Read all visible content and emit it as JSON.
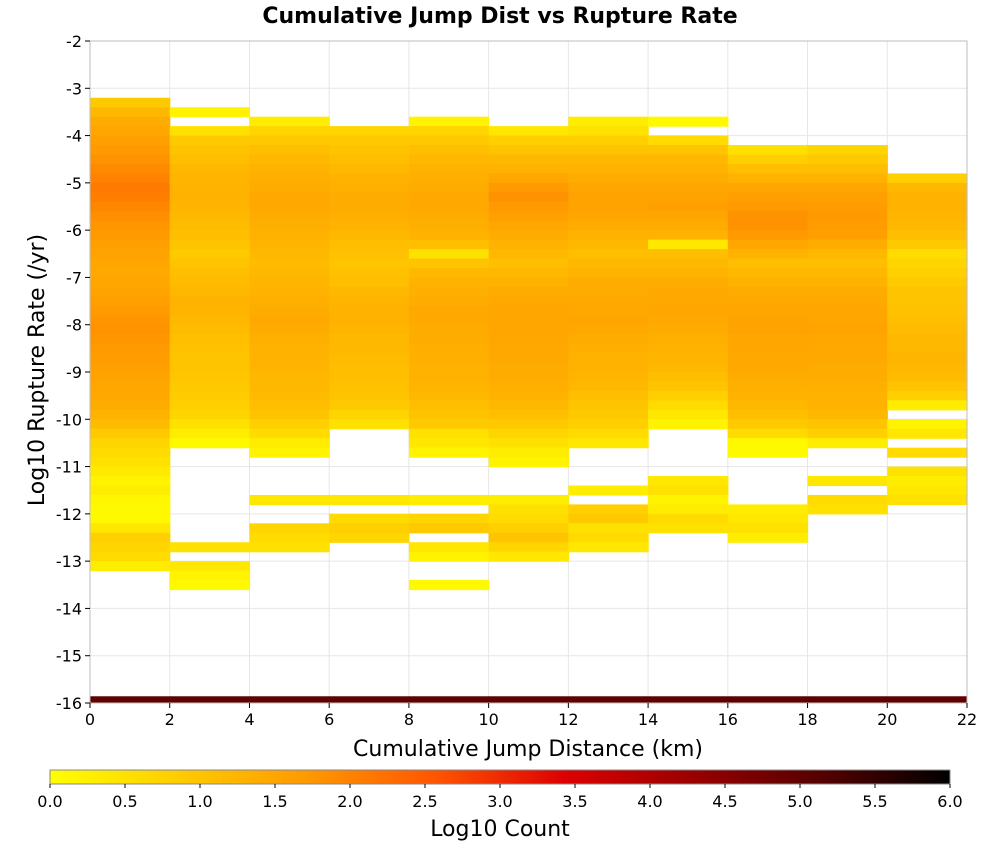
{
  "chart_data": {
    "type": "heatmap",
    "title": "Cumulative Jump Dist vs Rupture Rate",
    "xlabel": "Cumulative Jump Distance (km)",
    "ylabel": "Log10 Rupture Rate (/yr)",
    "xlim": [
      0,
      22
    ],
    "ylim": [
      -16,
      -2
    ],
    "x_ticks": [
      "0",
      "2",
      "4",
      "6",
      "8",
      "10",
      "12",
      "14",
      "16",
      "18",
      "20",
      "22"
    ],
    "y_ticks": [
      "-2",
      "-3",
      "-4",
      "-5",
      "-6",
      "-7",
      "-8",
      "-9",
      "-10",
      "-11",
      "-12",
      "-13",
      "-14",
      "-15",
      "-16"
    ],
    "x_bins": [
      0,
      2,
      4,
      6,
      8,
      10,
      12,
      14,
      16,
      18,
      20
    ],
    "x_bin_width": 2,
    "y_bin_height": 0.2,
    "grid": true,
    "colorbar": {
      "label": "Log10 Count",
      "range": [
        0,
        6
      ],
      "ticks": [
        "0.0",
        "0.5",
        "1.0",
        "1.5",
        "2.0",
        "2.5",
        "3.0",
        "3.5",
        "4.0",
        "4.5",
        "5.0",
        "5.5",
        "6.0"
      ],
      "stops": [
        "#ffff00",
        "#ffcc00",
        "#ff9900",
        "#ff5500",
        "#dd0000",
        "#990000",
        "#550000",
        "#000000"
      ]
    },
    "columns": [
      {
        "x_start": 0,
        "y_top": -3.2,
        "values": [
          0.9,
          1.2,
          1.4,
          1.5,
          1.6,
          1.7,
          1.8,
          1.9,
          2.0,
          2.1,
          2.05,
          1.95,
          1.85,
          1.75,
          1.7,
          1.6,
          1.55,
          1.5,
          1.45,
          1.5,
          1.55,
          1.6,
          1.7,
          1.75,
          1.8,
          1.75,
          1.7,
          1.65,
          1.6,
          1.55,
          1.5,
          1.45,
          1.4,
          1.3,
          1.15,
          0.9,
          0.7,
          0.6,
          0.5,
          0.35,
          0.2,
          0.3,
          0.15,
          0.1,
          0.1,
          0.4,
          0.8,
          0.7,
          0.6,
          0.3
        ]
      },
      {
        "x_start": 2,
        "y_top": -3.4,
        "values": [
          0.2,
          null,
          0.5,
          0.9,
          1.0,
          1.1,
          1.2,
          1.25,
          1.3,
          1.3,
          1.25,
          1.2,
          1.15,
          1.1,
          1.0,
          0.9,
          1.0,
          1.1,
          1.15,
          1.2,
          1.3,
          1.25,
          1.2,
          1.15,
          1.1,
          1.05,
          1.0,
          1.0,
          0.95,
          0.9,
          0.85,
          0.8,
          0.7,
          0.5,
          0.3,
          0.1,
          null,
          null,
          null,
          null,
          null,
          null,
          null,
          null,
          null,
          null,
          0.5,
          null,
          0.4,
          0.2,
          0.1
        ]
      },
      {
        "x_start": 4,
        "y_top": -3.6,
        "values": [
          0.3,
          0.7,
          0.9,
          1.1,
          1.2,
          1.3,
          1.35,
          1.4,
          1.45,
          1.45,
          1.4,
          1.35,
          1.3,
          1.25,
          1.2,
          1.15,
          1.2,
          1.25,
          1.3,
          1.35,
          1.4,
          1.45,
          1.4,
          1.35,
          1.3,
          1.3,
          1.25,
          1.2,
          1.2,
          1.15,
          1.1,
          1.0,
          0.8,
          0.6,
          0.3,
          0.2,
          null,
          null,
          null,
          null,
          0.4,
          null,
          null,
          0.7,
          0.6,
          0.5
        ]
      },
      {
        "x_start": 6,
        "y_top": -3.8,
        "values": [
          0.7,
          0.9,
          1.0,
          1.1,
          1.2,
          1.3,
          1.35,
          1.4,
          1.4,
          1.35,
          1.3,
          1.2,
          1.1,
          1.05,
          1.0,
          1.05,
          1.1,
          1.2,
          1.25,
          1.3,
          1.3,
          1.25,
          1.2,
          1.2,
          1.15,
          1.1,
          1.1,
          1.05,
          1.0,
          0.9,
          0.7,
          0.5,
          null,
          null,
          null,
          null,
          null,
          null,
          null,
          0.4,
          null,
          0.6,
          0.8,
          0.7
        ]
      },
      {
        "x_start": 8,
        "y_top": -3.6,
        "values": [
          0.2,
          0.7,
          0.9,
          1.1,
          1.2,
          1.3,
          1.35,
          1.4,
          1.45,
          1.45,
          1.4,
          1.35,
          1.3,
          1.1,
          0.5,
          1.0,
          1.2,
          1.3,
          1.35,
          1.4,
          1.45,
          1.45,
          1.4,
          1.4,
          1.35,
          1.35,
          1.3,
          1.3,
          1.25,
          1.2,
          1.1,
          1.0,
          0.9,
          0.5,
          0.4,
          0.2,
          null,
          null,
          null,
          null,
          0.3,
          null,
          0.7,
          0.9,
          null,
          0.4,
          0.2,
          null,
          null,
          0.1
        ]
      },
      {
        "x_start": 10,
        "y_top": -3.8,
        "values": [
          0.4,
          0.8,
          1.0,
          1.2,
          1.3,
          1.5,
          1.7,
          1.8,
          1.7,
          1.6,
          1.5,
          1.4,
          1.3,
          1.2,
          1.1,
          1.2,
          1.3,
          1.4,
          1.45,
          1.5,
          1.5,
          1.5,
          1.5,
          1.45,
          1.45,
          1.4,
          1.4,
          1.35,
          1.3,
          1.2,
          1.1,
          0.9,
          0.7,
          0.5,
          0.3,
          0.2,
          null,
          null,
          null,
          0.3,
          0.5,
          0.6,
          0.8,
          1.0,
          0.7,
          0.4
        ]
      },
      {
        "x_start": 12,
        "y_top": -3.6,
        "values": [
          0.3,
          0.5,
          0.8,
          1.0,
          1.2,
          1.3,
          1.4,
          1.5,
          1.55,
          1.55,
          1.5,
          1.4,
          1.3,
          1.2,
          1.1,
          1.2,
          1.3,
          1.4,
          1.4,
          1.45,
          1.45,
          1.5,
          1.45,
          1.4,
          1.35,
          1.3,
          1.3,
          1.25,
          1.2,
          1.1,
          1.0,
          0.9,
          0.8,
          0.6,
          0.4,
          null,
          null,
          null,
          null,
          0.3,
          null,
          0.8,
          0.9,
          0.5,
          0.6,
          0.4
        ]
      },
      {
        "x_start": 14,
        "y_top": -3.6,
        "values": [
          0.1,
          null,
          0.6,
          1.0,
          1.2,
          1.3,
          1.4,
          1.5,
          1.55,
          1.6,
          1.5,
          1.4,
          1.3,
          0.4,
          1.1,
          1.2,
          1.3,
          1.4,
          1.45,
          1.45,
          1.5,
          1.45,
          1.4,
          1.35,
          1.3,
          1.25,
          1.2,
          1.1,
          1.0,
          0.8,
          0.6,
          0.4,
          0.2,
          null,
          null,
          null,
          null,
          null,
          0.4,
          0.5,
          0.2,
          0.3,
          0.6,
          0.5
        ]
      },
      {
        "x_start": 16,
        "y_top": -4.2,
        "values": [
          0.5,
          0.8,
          1.1,
          1.3,
          1.5,
          1.6,
          1.7,
          1.8,
          1.8,
          1.7,
          1.5,
          1.3,
          1.1,
          1.2,
          1.3,
          1.4,
          1.45,
          1.5,
          1.55,
          1.55,
          1.5,
          1.5,
          1.45,
          1.45,
          1.4,
          1.35,
          1.3,
          1.2,
          1.1,
          0.9,
          0.6,
          0.1,
          0.1,
          null,
          null,
          null,
          null,
          null,
          0.3,
          0.4,
          0.5,
          0.3
        ]
      },
      {
        "x_start": 18,
        "y_top": -4.2,
        "values": [
          0.7,
          0.9,
          1.1,
          1.3,
          1.5,
          1.6,
          1.65,
          1.7,
          1.65,
          1.6,
          1.4,
          1.2,
          1.1,
          1.2,
          1.3,
          1.4,
          1.45,
          1.5,
          1.5,
          1.55,
          1.5,
          1.45,
          1.45,
          1.4,
          1.4,
          1.35,
          1.3,
          1.3,
          1.2,
          1.0,
          0.8,
          0.3,
          null,
          null,
          null,
          0.4,
          null,
          0.6,
          0.5
        ]
      },
      {
        "x_start": 20,
        "y_top": -4.8,
        "values": [
          0.8,
          1.2,
          1.3,
          1.3,
          1.25,
          1.2,
          1.1,
          0.9,
          0.6,
          0.7,
          0.8,
          0.9,
          1.0,
          1.0,
          1.05,
          1.1,
          1.15,
          1.2,
          1.2,
          1.25,
          1.2,
          1.15,
          1.0,
          0.8,
          0.3,
          null,
          0.2,
          0.4,
          null,
          0.6,
          null,
          0.5,
          0.3,
          0.4,
          0.5
        ]
      }
    ],
    "bottom_strip": {
      "y_range": [
        -16,
        -15.9
      ],
      "value": 5.0
    }
  }
}
